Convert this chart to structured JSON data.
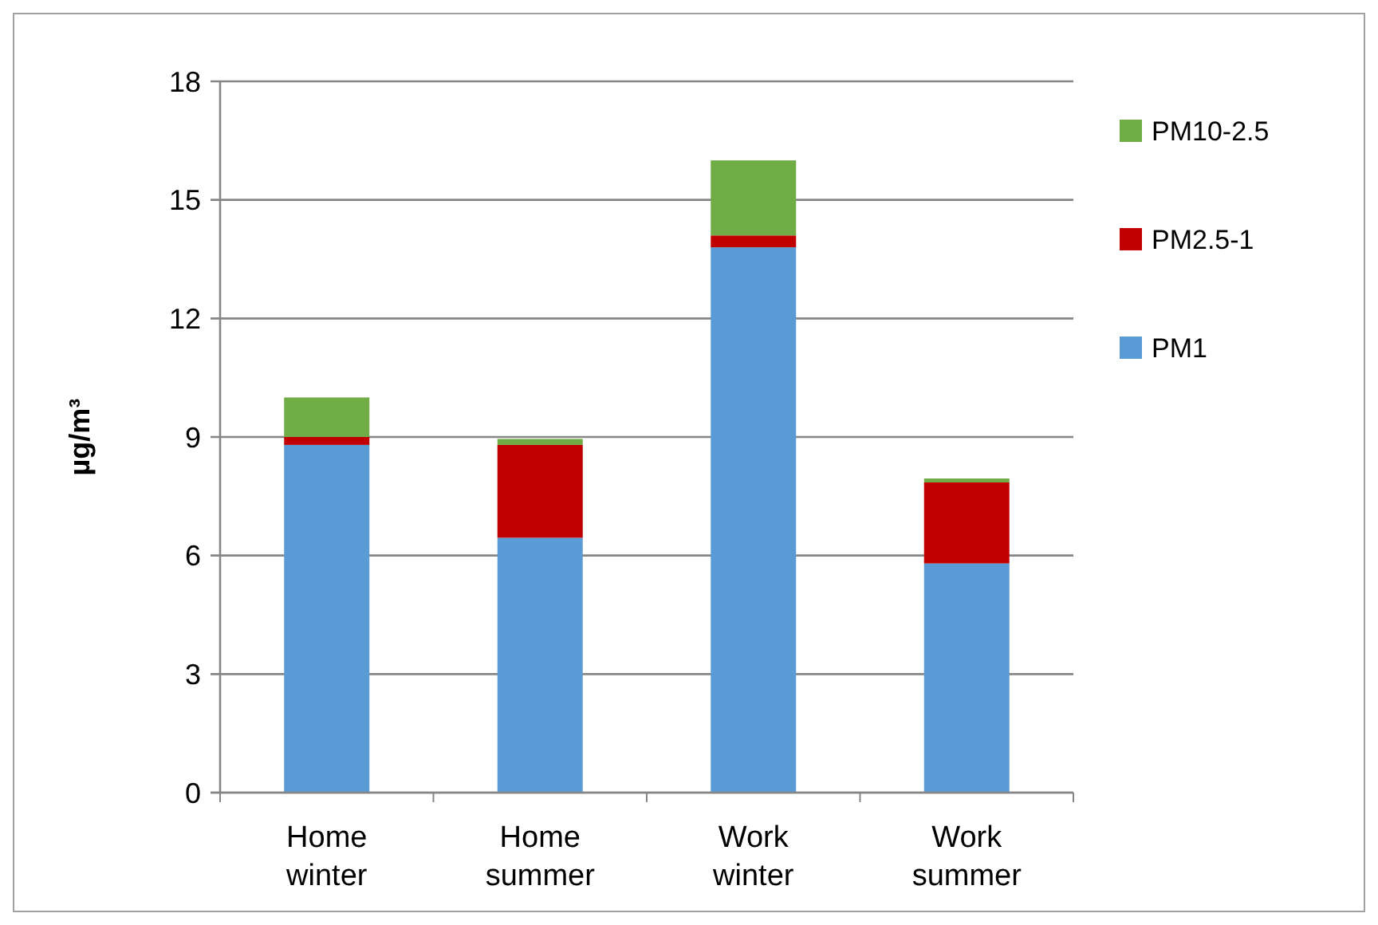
{
  "chart_data": {
    "type": "bar",
    "stacked": true,
    "ylabel": "µg/m³",
    "categories": [
      "Home winter",
      "Home summer",
      "Work winter",
      "Work summer"
    ],
    "series": [
      {
        "name": "PM1",
        "color": "#5b9bd5",
        "values": [
          8.8,
          6.45,
          13.8,
          5.8
        ]
      },
      {
        "name": "PM2.5-1",
        "color": "#c00000",
        "values": [
          0.2,
          2.35,
          0.3,
          2.05
        ]
      },
      {
        "name": "PM10-2.5",
        "color": "#70ad47",
        "values": [
          1.0,
          0.15,
          1.9,
          0.1
        ]
      }
    ],
    "ylim": [
      0,
      18
    ],
    "yticks": [
      0,
      3,
      6,
      9,
      12,
      15,
      18
    ],
    "grid": "y",
    "legend": "right"
  }
}
